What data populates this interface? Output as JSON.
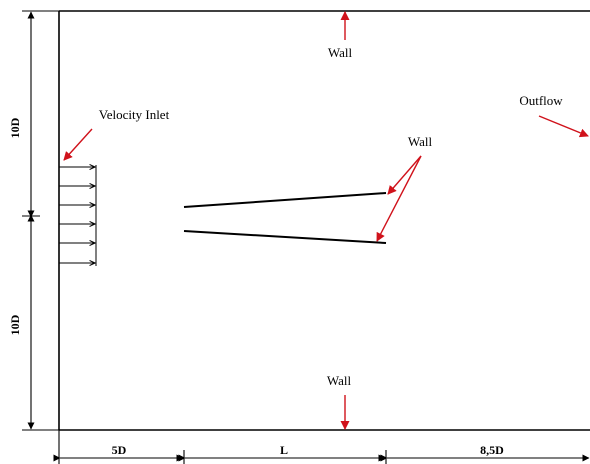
{
  "labels": {
    "wall_top": "Wall",
    "wall_bottom": "Wall",
    "wall_plates": "Wall",
    "velocity_inlet": "Velocity Inlet",
    "outflow": "Outflow"
  },
  "dimensions": {
    "upper_height": "10D",
    "lower_height": "10D",
    "upstream_length": "5D",
    "plate_length": "L",
    "downstream_length": "8,5D"
  },
  "colors": {
    "annotation_arrow": "#d0121b",
    "lines": "#000000"
  }
}
